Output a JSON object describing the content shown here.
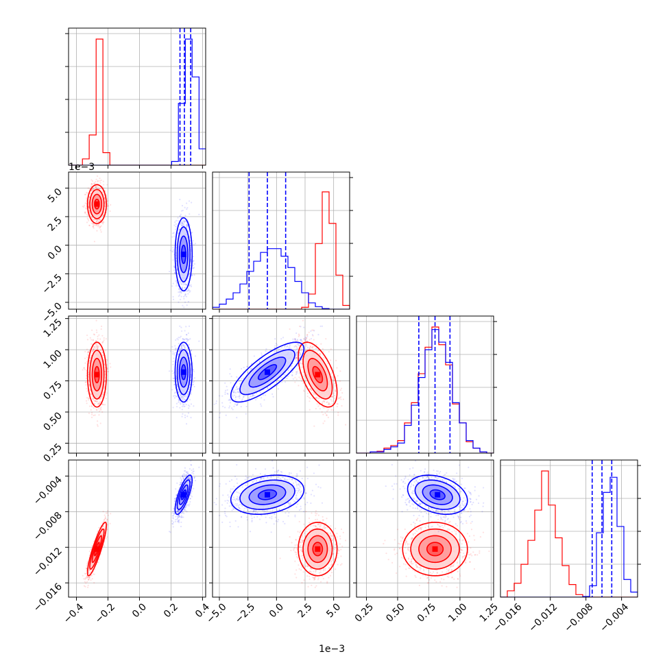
{
  "chart_data": {
    "type": "scatter",
    "kind": "corner-plot",
    "title": "",
    "grid": true,
    "legend": "none",
    "colors": {
      "red": "#ff0000",
      "blue": "#0000ff"
    },
    "series_order": [
      "red",
      "blue"
    ],
    "parameters": [
      {
        "range": [
          -0.45,
          0.42
        ],
        "ticks": [
          -0.4,
          -0.2,
          0.0,
          0.2,
          0.4
        ],
        "tick_labels": [
          "−0.4",
          "−0.2",
          "0.0",
          "0.2",
          "0.4"
        ],
        "offset_label": ""
      },
      {
        "range": [
          -5.6,
          6.4
        ],
        "ticks": [
          -5.0,
          -2.5,
          0.0,
          2.5,
          5.0
        ],
        "tick_labels": [
          "−5.0",
          "−2.5",
          "0.0",
          "2.5",
          "5.0"
        ],
        "offset_label": "1e−3"
      },
      {
        "range": [
          0.17,
          1.27
        ],
        "ticks": [
          0.25,
          0.5,
          0.75,
          1.0,
          1.25
        ],
        "tick_labels": [
          "0.25",
          "0.50",
          "0.75",
          "1.00",
          "1.25"
        ],
        "offset_label": ""
      },
      {
        "range": [
          -0.0176,
          -0.0022
        ],
        "ticks": [
          -0.016,
          -0.012,
          -0.008,
          -0.004
        ],
        "tick_labels": [
          "−0.016",
          "−0.012",
          "−0.008",
          "−0.004"
        ],
        "offset_label": ""
      }
    ],
    "diagonal": [
      {
        "blue_quantiles": [
          0.257,
          0.285,
          0.325
        ],
        "series": [
          {
            "name": "",
            "color": "red",
            "bin_edges": [
              -0.45,
              -0.406,
              -0.362,
              -0.319,
              -0.275,
              -0.232,
              -0.188,
              -0.145,
              -0.101,
              -0.058,
              -0.014,
              0.03,
              0.073,
              0.117,
              0.16,
              0.204,
              0.247,
              0.291,
              0.334,
              0.378,
              0.421
            ],
            "counts": [
              0,
              0,
              0.05,
              0.24,
              1.0,
              0.1,
              0,
              0,
              0,
              0,
              0,
              0,
              0,
              0,
              0,
              0,
              0,
              0,
              0,
              0
            ]
          },
          {
            "name": "",
            "color": "blue",
            "bin_edges": [
              -0.45,
              -0.406,
              -0.362,
              -0.319,
              -0.275,
              -0.232,
              -0.188,
              -0.145,
              -0.101,
              -0.058,
              -0.014,
              0.03,
              0.073,
              0.117,
              0.16,
              0.204,
              0.247,
              0.291,
              0.334,
              0.378,
              0.421
            ],
            "counts": [
              0,
              0,
              0,
              0,
              0,
              0,
              0,
              0,
              0,
              0,
              0,
              0,
              0,
              0,
              0,
              0.03,
              0.49,
              1.0,
              0.7,
              0.13
            ]
          }
        ]
      },
      {
        "blue_quantiles": [
          -2.4,
          -0.8,
          0.8
        ],
        "series": [
          {
            "name": "",
            "color": "red",
            "bin_edges": [
              -5.6,
              -5.0,
              -4.4,
              -3.8,
              -3.2,
              -2.6,
              -2.0,
              -1.4,
              -0.8,
              -0.2,
              0.4,
              1.0,
              1.6,
              2.2,
              2.8,
              3.4,
              4.0,
              4.6,
              5.2,
              5.8,
              6.4
            ],
            "counts": [
              0,
              0,
              0,
              0,
              0,
              0,
              0,
              0,
              0,
              0,
              0,
              0,
              0,
              0.015,
              0.12,
              0.52,
              0.93,
              0.68,
              0.27,
              0.03
            ]
          },
          {
            "name": "",
            "color": "blue",
            "bin_edges": [
              -5.6,
              -5.0,
              -4.4,
              -3.8,
              -3.2,
              -2.6,
              -2.0,
              -1.4,
              -0.8,
              -0.2,
              0.4,
              1.0,
              1.6,
              2.2,
              2.8,
              3.4,
              4.0,
              4.6,
              5.2,
              5.8,
              6.4
            ],
            "counts": [
              0.015,
              0.04,
              0.08,
              0.13,
              0.2,
              0.3,
              0.38,
              0.45,
              0.48,
              0.48,
              0.42,
              0.33,
              0.22,
              0.13,
              0.05,
              0.02,
              0.005,
              0,
              0,
              0
            ]
          }
        ]
      },
      {
        "blue_quantiles": [
          0.67,
          0.8,
          0.92
        ],
        "series": [
          {
            "name": "",
            "color": "red",
            "bin_edges": [
              0.17,
              0.225,
              0.28,
              0.335,
              0.39,
              0.445,
              0.5,
              0.555,
              0.61,
              0.665,
              0.72,
              0.775,
              0.83,
              0.885,
              0.94,
              0.995,
              1.05,
              1.105,
              1.16,
              1.215,
              1.27
            ],
            "counts": [
              0,
              0,
              0.01,
              0.015,
              0.04,
              0.06,
              0.1,
              0.24,
              0.4,
              0.63,
              0.84,
              1.0,
              0.86,
              0.7,
              0.39,
              0.24,
              0.09,
              0.04,
              0.01,
              0
            ]
          },
          {
            "name": "",
            "color": "blue",
            "bin_edges": [
              0.17,
              0.225,
              0.28,
              0.335,
              0.39,
              0.445,
              0.5,
              0.555,
              0.61,
              0.665,
              0.72,
              0.775,
              0.83,
              0.885,
              0.94,
              0.995,
              1.05,
              1.105,
              1.16,
              1.215,
              1.27
            ],
            "counts": [
              0,
              0,
              0.01,
              0.01,
              0.03,
              0.05,
              0.08,
              0.22,
              0.38,
              0.6,
              0.82,
              0.98,
              0.88,
              0.72,
              0.4,
              0.24,
              0.1,
              0.04,
              0.01,
              0
            ]
          }
        ]
      },
      {
        "blue_quantiles": [
          -0.0073,
          -0.0062,
          -0.0051
        ],
        "series": [
          {
            "name": "",
            "color": "red",
            "bin_edges": [
              -0.0176,
              -0.01683,
              -0.01606,
              -0.01529,
              -0.01452,
              -0.01375,
              -0.01298,
              -0.01221,
              -0.01144,
              -0.01067,
              -0.0099,
              -0.00913,
              -0.00836,
              -0.00759,
              -0.00682,
              -0.00605,
              -0.00528,
              -0.00451,
              -0.00374,
              -0.00297,
              -0.0022
            ],
            "counts": [
              0,
              0.05,
              0.11,
              0.26,
              0.45,
              0.69,
              1.0,
              0.73,
              0.47,
              0.25,
              0.1,
              0.02,
              0,
              0,
              0,
              0,
              0,
              0,
              0,
              0
            ]
          },
          {
            "name": "",
            "color": "blue",
            "bin_edges": [
              -0.0176,
              -0.01683,
              -0.01606,
              -0.01529,
              -0.01452,
              -0.01375,
              -0.01298,
              -0.01221,
              -0.01144,
              -0.01067,
              -0.0099,
              -0.00913,
              -0.00836,
              -0.00759,
              -0.00682,
              -0.00605,
              -0.00528,
              -0.00451,
              -0.00374,
              -0.00297,
              -0.0022
            ],
            "counts": [
              0,
              0,
              0,
              0,
              0,
              0,
              0,
              0,
              0,
              0,
              0,
              0,
              0.005,
              0.09,
              0.51,
              0.83,
              0.95,
              0.56,
              0.14,
              0.04
            ]
          }
        ]
      }
    ],
    "blobs": {
      "red": {
        "center": [
          -0.27,
          3.6,
          0.8,
          -0.0122
        ],
        "std": [
          0.03,
          0.85,
          0.13,
          0.0015
        ],
        "correlation": [
          [
            1,
            0,
            0,
            0.88
          ],
          [
            0,
            1,
            -0.55,
            0
          ],
          [
            0,
            -0.55,
            1,
            0
          ],
          [
            0.88,
            0,
            0,
            1
          ]
        ]
      },
      "blue": {
        "center": [
          0.28,
          -0.8,
          0.82,
          -0.0061
        ],
        "std": [
          0.027,
          1.6,
          0.12,
          0.0011
        ],
        "correlation": [
          [
            1,
            0,
            0,
            0.75
          ],
          [
            0,
            1,
            0.78,
            0.25
          ],
          [
            0,
            0.78,
            1,
            -0.3
          ],
          [
            0.75,
            0.25,
            -0.3,
            1
          ]
        ]
      }
    }
  }
}
